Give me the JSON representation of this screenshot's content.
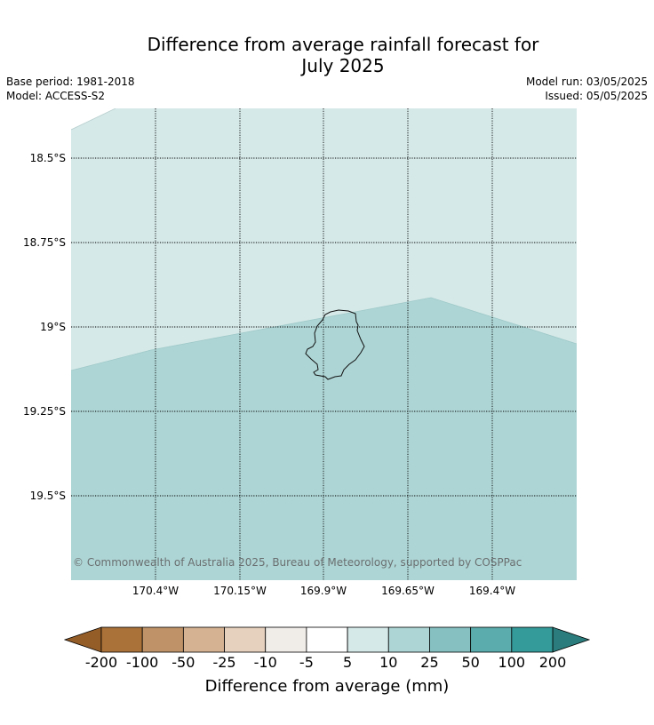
{
  "title_line1": "Difference from average rainfall forecast for",
  "title_line2": "July 2025",
  "meta_left": {
    "base_period": "Base period: 1981-2018",
    "model": "Model: ACCESS-S2"
  },
  "meta_right": {
    "model_run": "Model run: 03/05/2025",
    "issued": "Issued: 05/05/2025"
  },
  "map": {
    "lat_labels": [
      "18.5°S",
      "18.75°S",
      "19°S",
      "19.25°S",
      "19.5°S"
    ],
    "lon_labels": [
      "170.4°W",
      "170.15°W",
      "169.9°W",
      "169.65°W",
      "169.4°W"
    ],
    "copyright": "© Commonwealth of Australia 2025, Bureau of Meteorology, supported by COSPPac",
    "fill_colors": {
      "category_5_to_10": "#d5e9e8",
      "category_10_to_25": "#aed5d5"
    }
  },
  "colorbar": {
    "title": "Difference from average (mm)",
    "ticks": [
      "-200",
      "-100",
      "-50",
      "-25",
      "-10",
      "-5",
      "5",
      "10",
      "25",
      "50",
      "100",
      "200"
    ],
    "colors": [
      "#aa7138",
      "#bf9367",
      "#d4b292",
      "#e6d0be",
      "#f0ece8",
      "#ffffff",
      "#d5e9e8",
      "#aed5d5",
      "#86c0c1",
      "#5bacad",
      "#349a9a"
    ],
    "under_color": "#945c27",
    "over_color": "#2a7d7c"
  }
}
